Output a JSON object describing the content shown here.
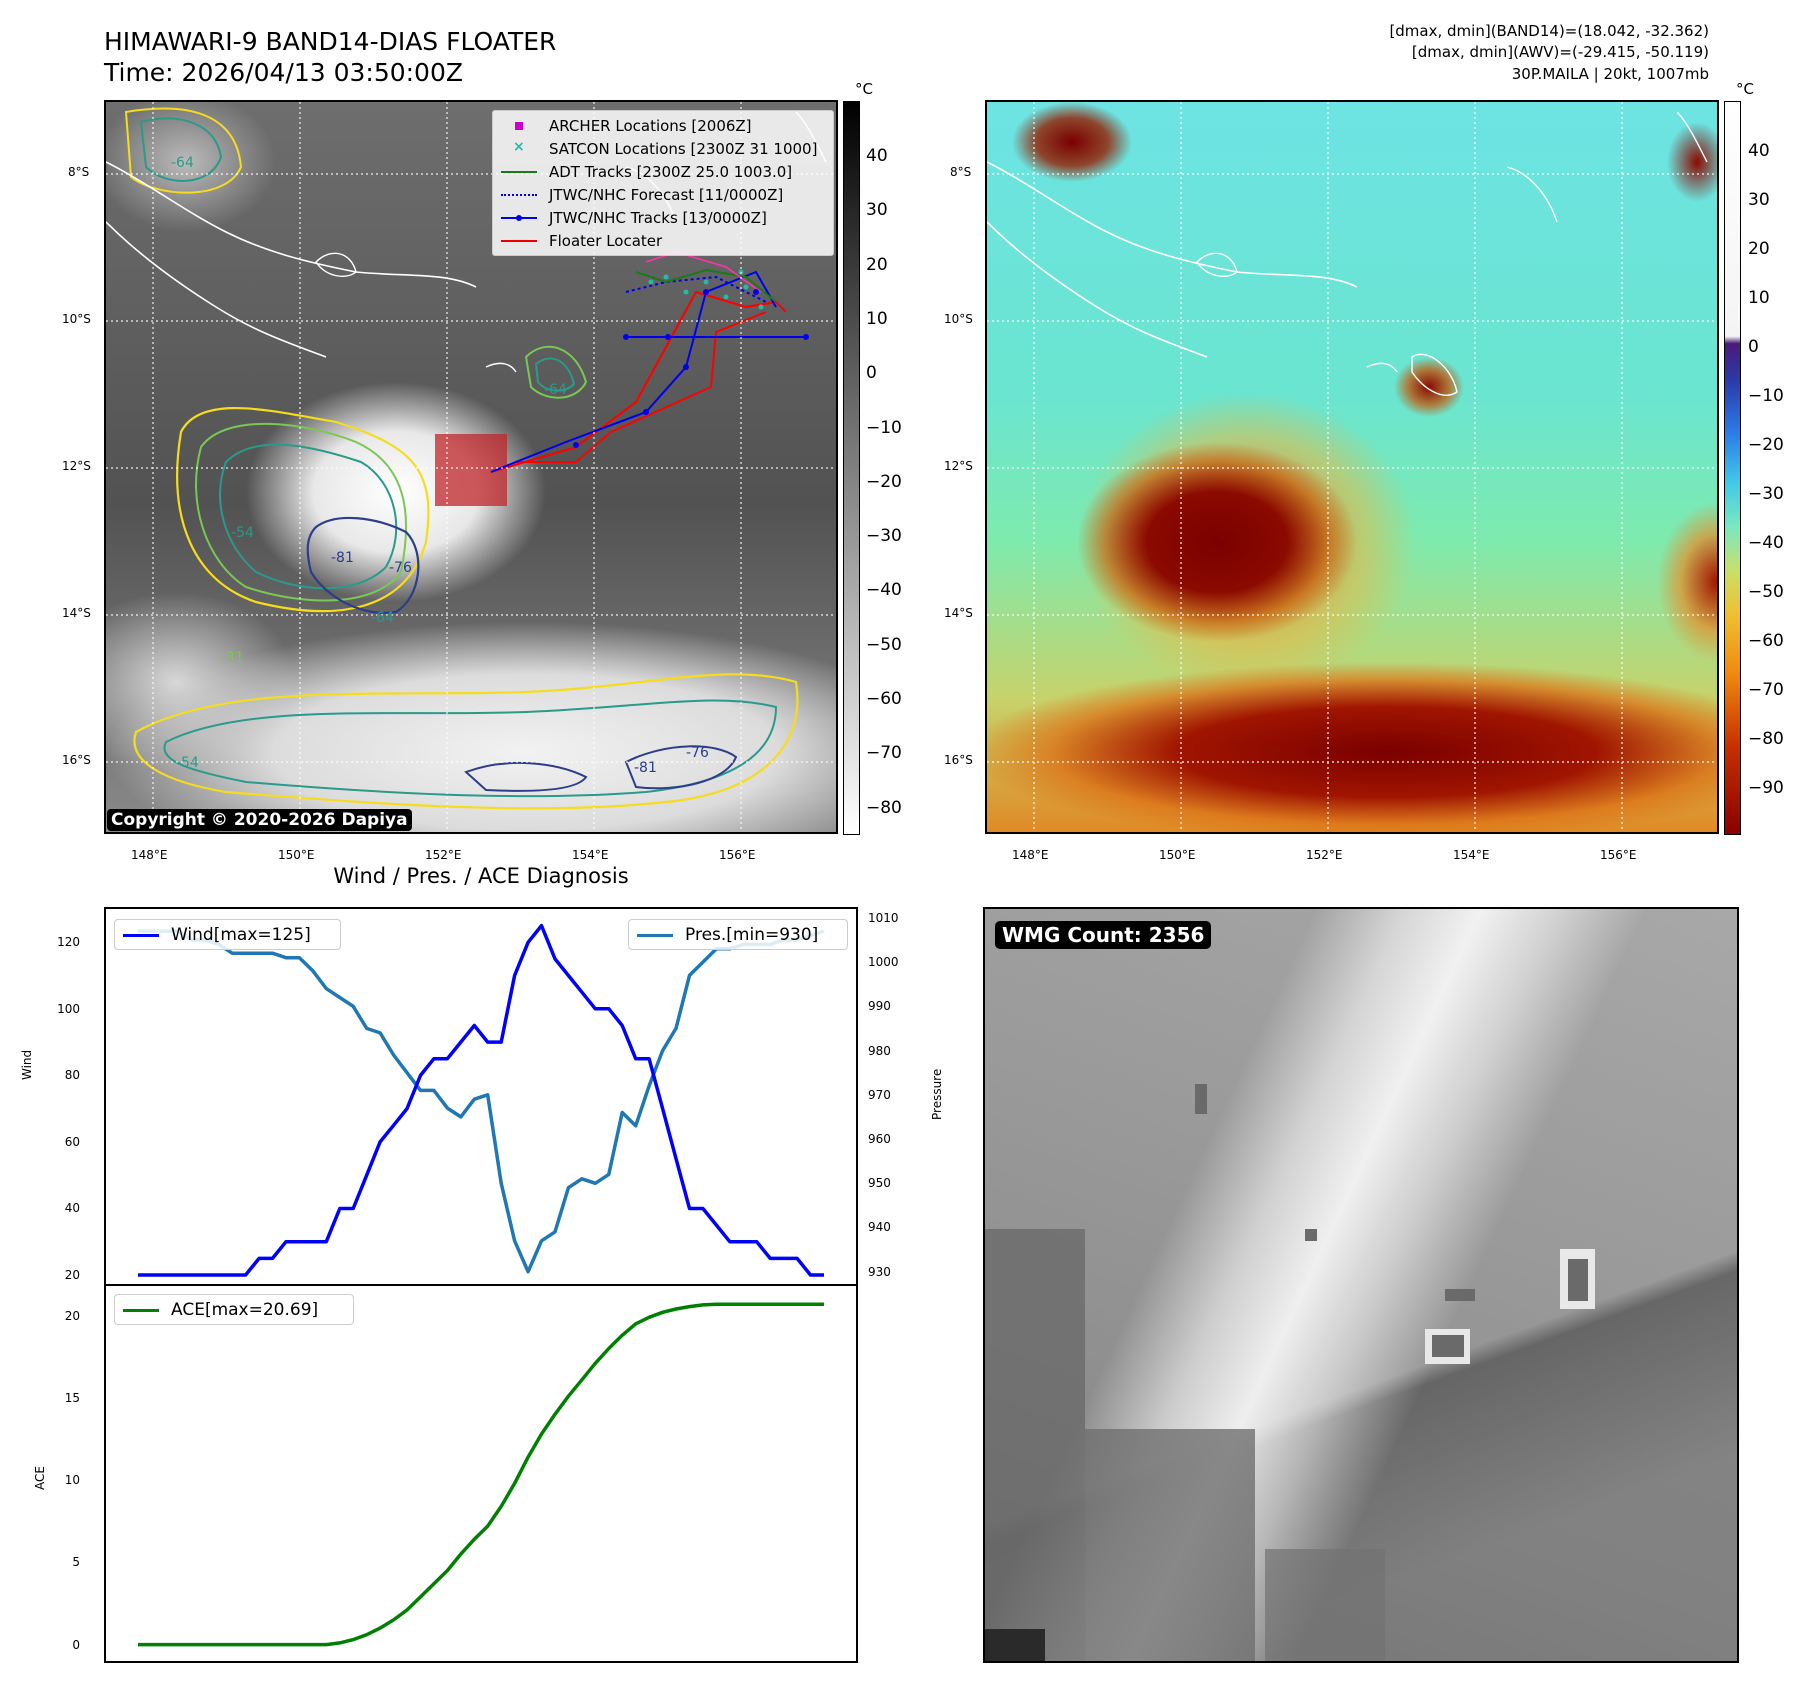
{
  "header": {
    "title_line1": "HIMAWARI-9 BAND14-DIAS FLOATER",
    "title_line2": "Time: 2026/04/13 03:50:00Z",
    "info_line1": "[dmax, dmin](BAND14)=(18.042, -32.362)",
    "info_line2": "[dmax, dmin](AWV)=(-29.415, -50.119)",
    "info_line3": "30P.MAILA | 20kt, 1007mb"
  },
  "map_axes": {
    "lat_labels": [
      "8°S",
      "10°S",
      "12°S",
      "14°S",
      "16°S"
    ],
    "lon_labels": [
      "148°E",
      "150°E",
      "152°E",
      "154°E",
      "156°E"
    ]
  },
  "left_map": {
    "legend": [
      {
        "label": "ARCHER Locations [2006Z]",
        "color": "#cc00cc",
        "marker": "square"
      },
      {
        "label": "SATCON Locations [2300Z 31 1000]",
        "color": "#22bbaa",
        "marker": "x"
      },
      {
        "label": "ADT Tracks [2300Z 25.0 1003.0]",
        "color": "#1a7a1a",
        "marker": "line"
      },
      {
        "label": "JTWC/NHC Forecast [11/0000Z]",
        "color": "#0000ee",
        "marker": "dotted"
      },
      {
        "label": "JTWC/NHC Tracks [13/0000Z]",
        "color": "#0000ee",
        "marker": "line-dot"
      },
      {
        "label": "Floater Locater",
        "color": "#ee0000",
        "marker": "line"
      }
    ],
    "contour_labels": [
      "-64",
      "-54",
      "-81",
      "-76",
      "-64",
      "-31",
      "-54",
      "-81",
      "-76",
      "-64"
    ],
    "copyright": "Copyright © 2020-2026 Dapiya",
    "colorbar_unit": "°C",
    "colorbar_ticks": [
      "40",
      "30",
      "20",
      "10",
      "0",
      "−10",
      "−20",
      "−30",
      "−40",
      "−50",
      "−60",
      "−70",
      "−80"
    ]
  },
  "right_map": {
    "colorbar_unit": "°C",
    "colorbar_ticks": [
      "40",
      "30",
      "20",
      "10",
      "0",
      "−10",
      "−20",
      "−30",
      "−40",
      "−50",
      "−60",
      "−70",
      "−80",
      "−90"
    ]
  },
  "diagnosis": {
    "title": "Wind / Pres. / ACE Diagnosis",
    "wind_ylabel": "Wind",
    "pres_ylabel": "Pressure",
    "ace_ylabel": "ACE",
    "wind_ticks": [
      "120",
      "100",
      "80",
      "60",
      "40",
      "20"
    ],
    "pres_ticks": [
      "1010",
      "1000",
      "990",
      "980",
      "970",
      "960",
      "950",
      "940",
      "930"
    ],
    "ace_ticks": [
      "20",
      "15",
      "10",
      "5",
      "0"
    ],
    "legend_wind": "Wind[max=125]",
    "legend_pres": "Pres.[min=930]",
    "legend_ace": "ACE[max=20.69]"
  },
  "wmg_panel": {
    "label": "WMG Count: 2356"
  },
  "chart_data": [
    {
      "type": "line",
      "title": "Wind / Pres. / ACE Diagnosis",
      "ylabel": "Wind",
      "ylim": [
        17,
        130
      ],
      "series": [
        {
          "name": "Wind[max=125]",
          "color": "#0000ff",
          "values": [
            20,
            20,
            20,
            20,
            20,
            20,
            20,
            20,
            20,
            25,
            25,
            30,
            30,
            30,
            30,
            40,
            40,
            50,
            60,
            65,
            70,
            80,
            85,
            85,
            90,
            95,
            90,
            90,
            110,
            120,
            125,
            115,
            110,
            105,
            100,
            100,
            95,
            85,
            85,
            70,
            55,
            40,
            40,
            35,
            30,
            30,
            30,
            25,
            25,
            25,
            20,
            20
          ]
        }
      ]
    },
    {
      "type": "line",
      "ylabel": "Pressure",
      "ylim": [
        927,
        1012
      ],
      "series": [
        {
          "name": "Pres.[min=930]",
          "color": "#1f77b4",
          "values": [
            1007,
            1007,
            1007,
            1007,
            1005,
            1005,
            1004,
            1002,
            1002,
            1002,
            1002,
            1001,
            1001,
            998,
            994,
            992,
            990,
            985,
            984,
            979,
            975,
            971,
            971,
            967,
            965,
            969,
            970,
            950,
            937,
            930,
            937,
            939,
            949,
            951,
            950,
            952,
            966,
            963,
            972,
            980,
            985,
            997,
            1000,
            1003,
            1003,
            1004,
            1004,
            1004,
            1005,
            1005,
            1006,
            1007
          ]
        }
      ]
    },
    {
      "type": "line",
      "ylabel": "ACE",
      "ylim": [
        -1,
        21.8
      ],
      "series": [
        {
          "name": "ACE[max=20.69]",
          "color": "#008000",
          "values": [
            0,
            0,
            0,
            0,
            0,
            0,
            0,
            0,
            0,
            0,
            0,
            0,
            0,
            0,
            0,
            0.1,
            0.3,
            0.6,
            1.0,
            1.5,
            2.1,
            2.9,
            3.7,
            4.5,
            5.5,
            6.4,
            7.2,
            8.4,
            9.8,
            11.4,
            12.8,
            14.0,
            15.1,
            16.1,
            17.1,
            18.0,
            18.8,
            19.5,
            19.9,
            20.2,
            20.4,
            20.55,
            20.65,
            20.69,
            20.69,
            20.69,
            20.69,
            20.69,
            20.69,
            20.69,
            20.69,
            20.69
          ]
        }
      ]
    }
  ]
}
